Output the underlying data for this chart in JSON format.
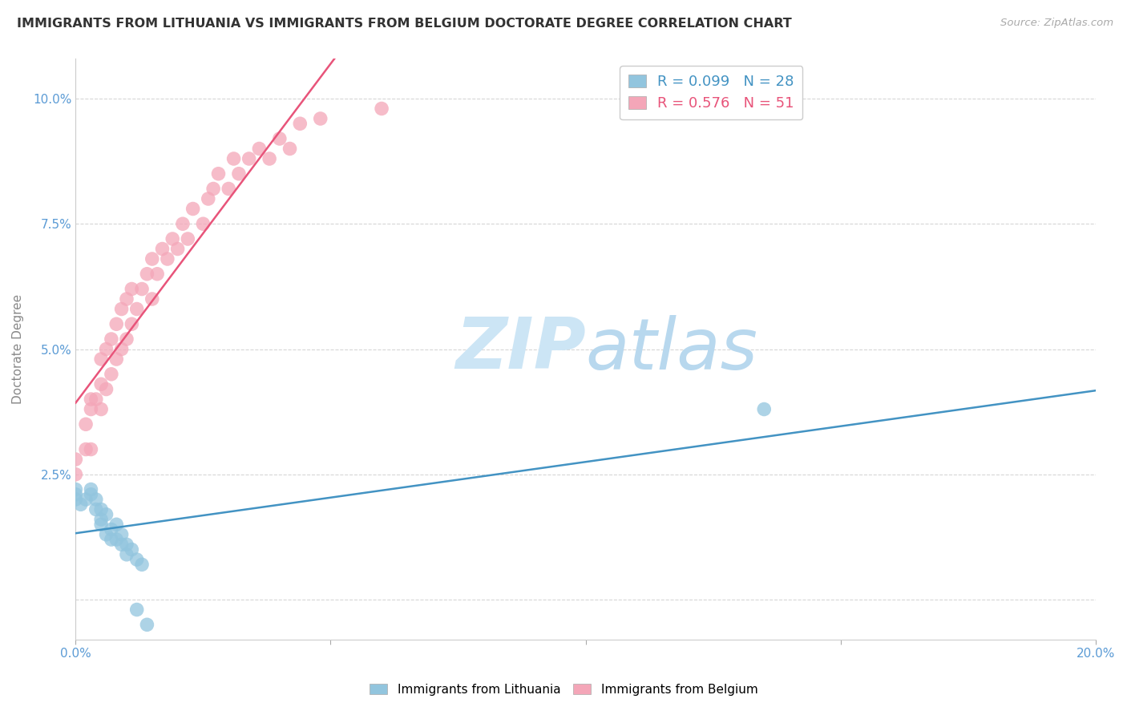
{
  "title": "IMMIGRANTS FROM LITHUANIA VS IMMIGRANTS FROM BELGIUM DOCTORATE DEGREE CORRELATION CHART",
  "source_text": "Source: ZipAtlas.com",
  "ylabel": "Doctorate Degree",
  "xlim": [
    0.0,
    0.2
  ],
  "ylim": [
    -0.008,
    0.108
  ],
  "xticks": [
    0.0,
    0.05,
    0.1,
    0.15,
    0.2
  ],
  "xticklabels": [
    "0.0%",
    "",
    "",
    "",
    "20.0%"
  ],
  "yticks": [
    0.0,
    0.025,
    0.05,
    0.075,
    0.1
  ],
  "yticklabels": [
    "",
    "2.5%",
    "5.0%",
    "7.5%",
    "10.0%"
  ],
  "color_lithuania": "#92c5de",
  "color_belgium": "#f4a6b8",
  "color_trendline_lithuania": "#4393c3",
  "color_trendline_belgium": "#e8547a",
  "watermark_color": "#cce5f5",
  "title_fontsize": 11.5,
  "axis_label_fontsize": 11,
  "tick_fontsize": 11,
  "legend_fontsize": 13,
  "background_color": "#ffffff",
  "grid_color": "#cccccc",
  "lithuania_x": [
    0.0,
    0.0,
    0.0,
    0.001,
    0.002,
    0.003,
    0.003,
    0.004,
    0.004,
    0.005,
    0.005,
    0.005,
    0.006,
    0.006,
    0.007,
    0.007,
    0.008,
    0.008,
    0.009,
    0.009,
    0.01,
    0.01,
    0.011,
    0.012,
    0.012,
    0.013,
    0.014,
    0.135
  ],
  "lithuania_y": [
    0.022,
    0.021,
    0.02,
    0.019,
    0.02,
    0.022,
    0.021,
    0.018,
    0.02,
    0.016,
    0.018,
    0.015,
    0.017,
    0.013,
    0.014,
    0.012,
    0.015,
    0.012,
    0.013,
    0.011,
    0.011,
    0.009,
    0.01,
    0.008,
    -0.002,
    0.007,
    -0.005,
    0.038
  ],
  "belgium_x": [
    0.0,
    0.0,
    0.002,
    0.002,
    0.003,
    0.003,
    0.003,
    0.004,
    0.005,
    0.005,
    0.005,
    0.006,
    0.006,
    0.007,
    0.007,
    0.008,
    0.008,
    0.009,
    0.009,
    0.01,
    0.01,
    0.011,
    0.011,
    0.012,
    0.013,
    0.014,
    0.015,
    0.015,
    0.016,
    0.017,
    0.018,
    0.019,
    0.02,
    0.021,
    0.022,
    0.023,
    0.025,
    0.026,
    0.027,
    0.028,
    0.03,
    0.031,
    0.032,
    0.034,
    0.036,
    0.038,
    0.04,
    0.042,
    0.044,
    0.048,
    0.06
  ],
  "belgium_y": [
    0.025,
    0.028,
    0.03,
    0.035,
    0.03,
    0.038,
    0.04,
    0.04,
    0.038,
    0.043,
    0.048,
    0.042,
    0.05,
    0.045,
    0.052,
    0.048,
    0.055,
    0.05,
    0.058,
    0.052,
    0.06,
    0.055,
    0.062,
    0.058,
    0.062,
    0.065,
    0.06,
    0.068,
    0.065,
    0.07,
    0.068,
    0.072,
    0.07,
    0.075,
    0.072,
    0.078,
    0.075,
    0.08,
    0.082,
    0.085,
    0.082,
    0.088,
    0.085,
    0.088,
    0.09,
    0.088,
    0.092,
    0.09,
    0.095,
    0.096,
    0.098
  ]
}
